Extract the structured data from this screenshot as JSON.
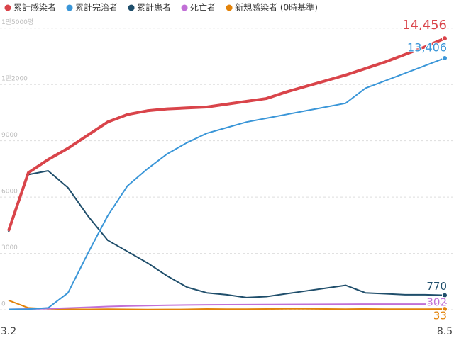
{
  "chart_data": {
    "type": "line",
    "categories": [
      "3.2",
      null,
      null,
      null,
      null,
      null,
      null,
      null,
      null,
      null,
      null,
      null,
      null,
      null,
      null,
      null,
      null,
      null,
      null,
      null,
      null,
      null,
      "8.5"
    ],
    "series": [
      {
        "name": "累計感染者",
        "color": "#d9444a",
        "values": [
          4200,
          7300,
          8000,
          8600,
          9300,
          10000,
          10400,
          10600,
          10700,
          10750,
          10800,
          10950,
          11100,
          11250,
          11600,
          11900,
          12200,
          12500,
          12850,
          13200,
          13600,
          14000,
          14456
        ],
        "value_labels": [
          null,
          null,
          null,
          null,
          null,
          null,
          null,
          null,
          null,
          null,
          null,
          null,
          null,
          null,
          null,
          null,
          null,
          null,
          null,
          null,
          null,
          null,
          "14,456"
        ]
      },
      {
        "name": "累計完治者",
        "color": "#3a96d8",
        "values": [
          20,
          30,
          100,
          900,
          3000,
          5000,
          6600,
          7500,
          8300,
          8900,
          9400,
          9700,
          10000,
          10200,
          10400,
          10600,
          10800,
          11000,
          11800,
          12200,
          12600,
          13000,
          13406
        ],
        "value_labels": [
          null,
          null,
          null,
          null,
          null,
          null,
          null,
          null,
          null,
          null,
          null,
          null,
          null,
          null,
          null,
          null,
          null,
          null,
          null,
          null,
          null,
          null,
          "13,406"
        ]
      },
      {
        "name": "累計患者",
        "color": "#1f4e6b",
        "values": [
          4150,
          7200,
          7400,
          6500,
          5000,
          3700,
          3100,
          2500,
          1800,
          1200,
          900,
          800,
          650,
          700,
          850,
          1000,
          1150,
          1300,
          900,
          850,
          800,
          800,
          770
        ]
      },
      {
        "name": "死亡者",
        "color": "#c16fd6",
        "values": [
          20,
          40,
          60,
          90,
          130,
          170,
          200,
          220,
          240,
          250,
          260,
          265,
          270,
          275,
          280,
          285,
          290,
          295,
          298,
          300,
          300,
          301,
          302
        ]
      },
      {
        "name": "新規感染者 (0時基準)",
        "color": "#e3830a",
        "values": [
          500,
          100,
          50,
          30,
          20,
          30,
          20,
          10,
          15,
          20,
          40,
          30,
          30,
          40,
          50,
          50,
          40,
          30,
          40,
          30,
          30,
          30,
          33
        ]
      }
    ],
    "ylim": [
      -300,
      16500
    ],
    "yticks": [
      0,
      3000,
      6000,
      9000,
      {
        "value": 12000,
        "label": "1만2000"
      },
      {
        "value": 15000,
        "label": "1만5000명"
      }
    ],
    "grid": true
  }
}
